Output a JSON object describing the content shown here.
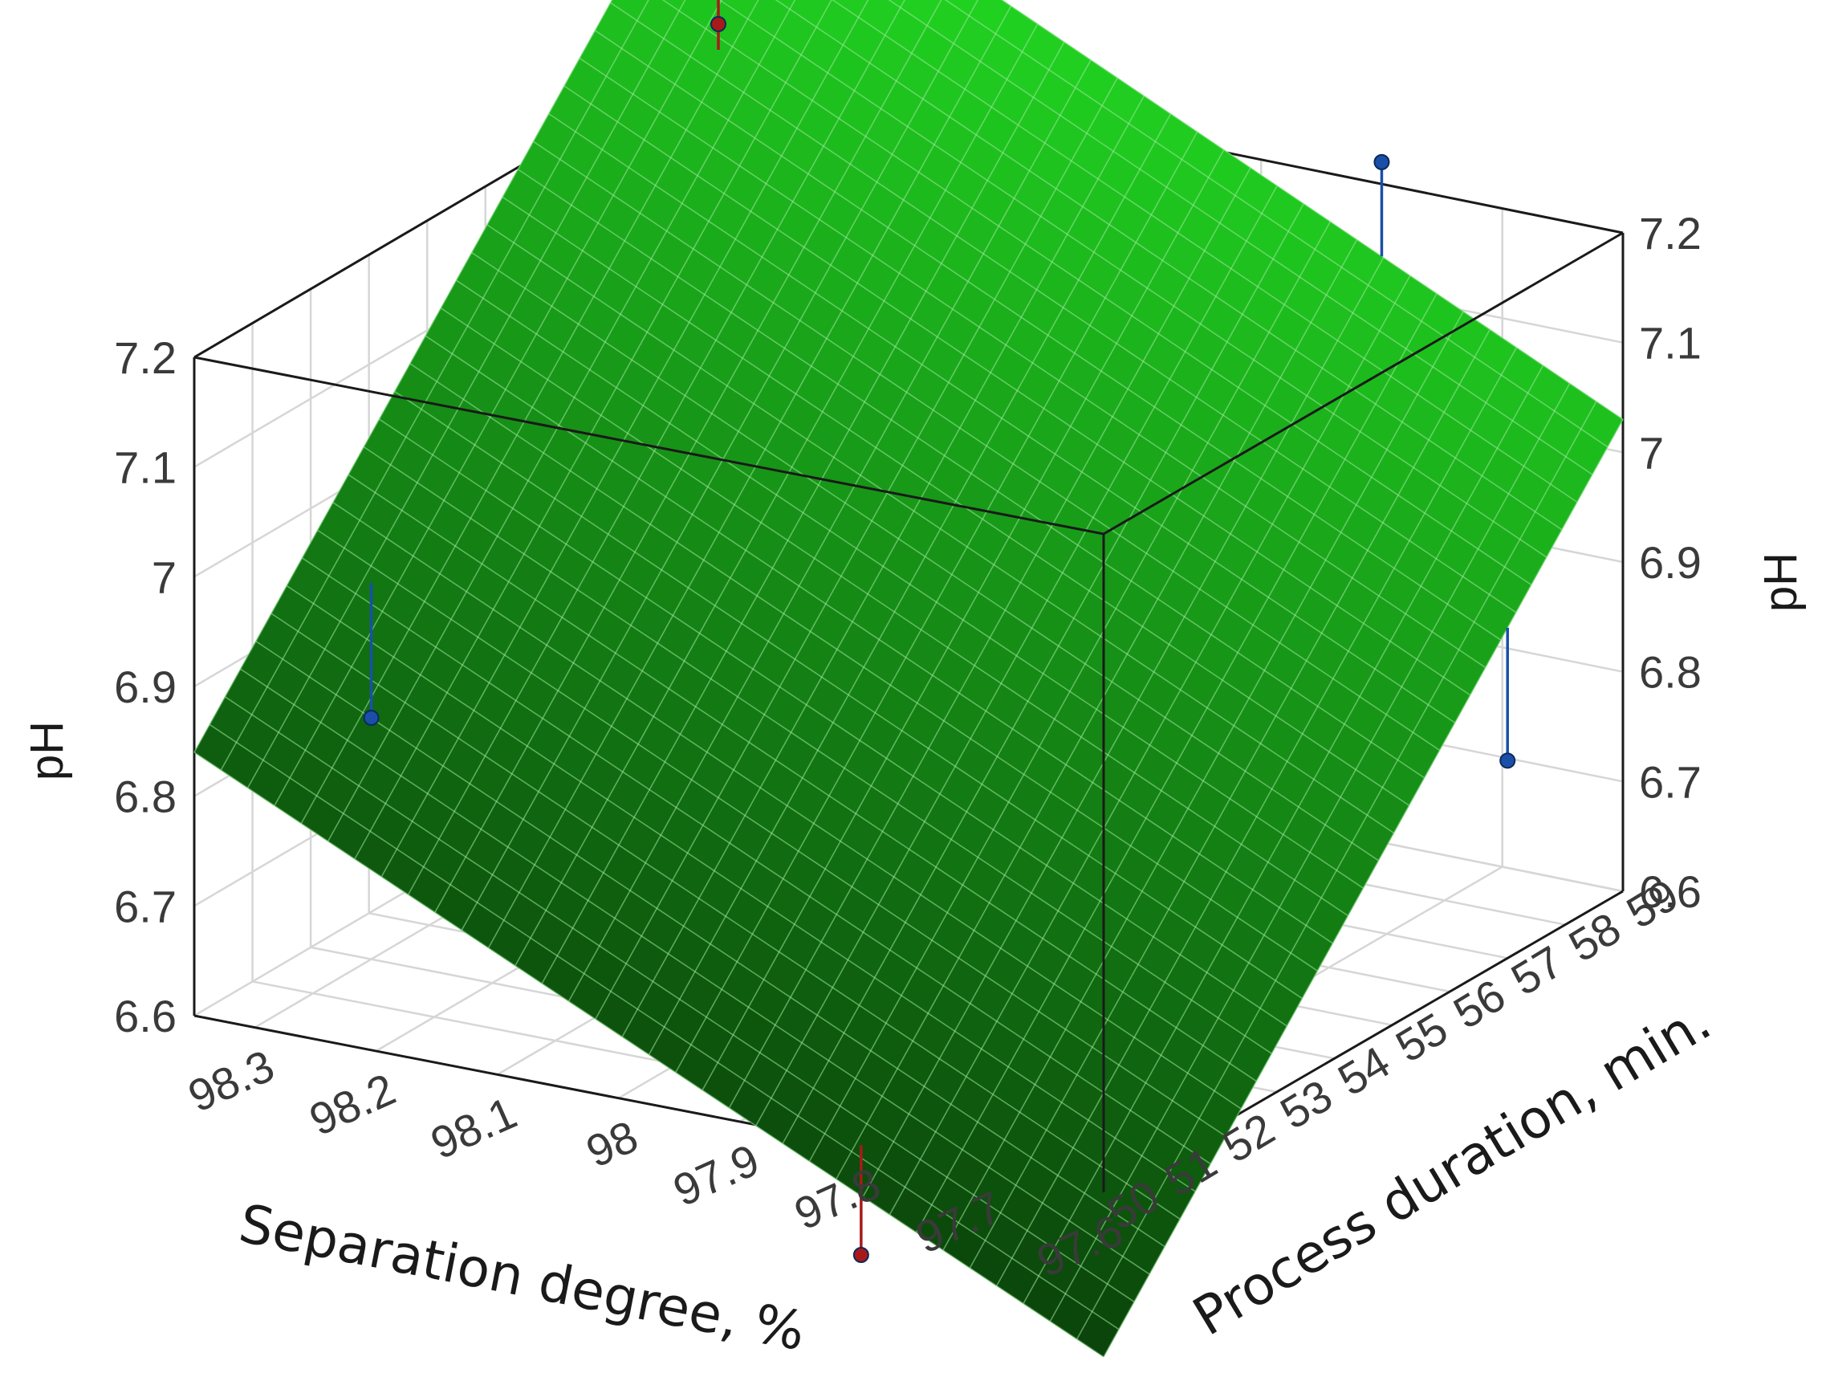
{
  "chart_data": {
    "type": "surface3d",
    "x_axis": {
      "label": "Separation degree, %",
      "range": [
        97.6,
        98.35
      ],
      "ticks": [
        "98.3",
        "98.2",
        "98.1",
        "98",
        "97.9",
        "97.8",
        "97.7",
        "97.6"
      ]
    },
    "y_axis": {
      "label": "Process duration, min.",
      "range": [
        50,
        59
      ],
      "ticks": [
        "50",
        "51",
        "52",
        "53",
        "54",
        "55",
        "56",
        "57",
        "58",
        "59"
      ]
    },
    "z_axis": {
      "label_left": "pH",
      "label_right": "pH",
      "range": [
        6.6,
        7.2
      ],
      "ticks_left": [
        "6.6",
        "6.7",
        "6.8",
        "6.9",
        "7",
        "7.1",
        "7.2"
      ],
      "ticks_right": [
        "6.6",
        "6.7",
        "6.8",
        "6.9",
        "7",
        "7.1",
        "7.2"
      ]
    },
    "surface_color": "#1aa81a",
    "surface_corners": [
      {
        "separation_degree": 98.35,
        "process_duration": 50,
        "pH": 6.84
      },
      {
        "separation_degree": 97.6,
        "process_duration": 50,
        "pH": 6.45
      },
      {
        "separation_degree": 97.6,
        "process_duration": 59,
        "pH": 7.03
      },
      {
        "separation_degree": 98.35,
        "process_duration": 59,
        "pH": 7.42
      }
    ],
    "observed_points": [
      {
        "separation_degree": 98.3,
        "process_duration": 52,
        "pH": 6.82,
        "color": "#1a4fa8"
      },
      {
        "separation_degree": 97.6,
        "process_duration": 57,
        "pH": 6.78,
        "color": "#1a4fa8"
      },
      {
        "separation_degree": 97.8,
        "process_duration": 59,
        "pH": 7.22,
        "color": "#1a4fa8"
      },
      {
        "separation_degree": 98.35,
        "process_duration": 59,
        "pH": 7.3,
        "color": "#a81a1a"
      },
      {
        "separation_degree": 97.8,
        "process_duration": 50,
        "pH": 6.5,
        "color": "#a81a1a"
      }
    ]
  }
}
